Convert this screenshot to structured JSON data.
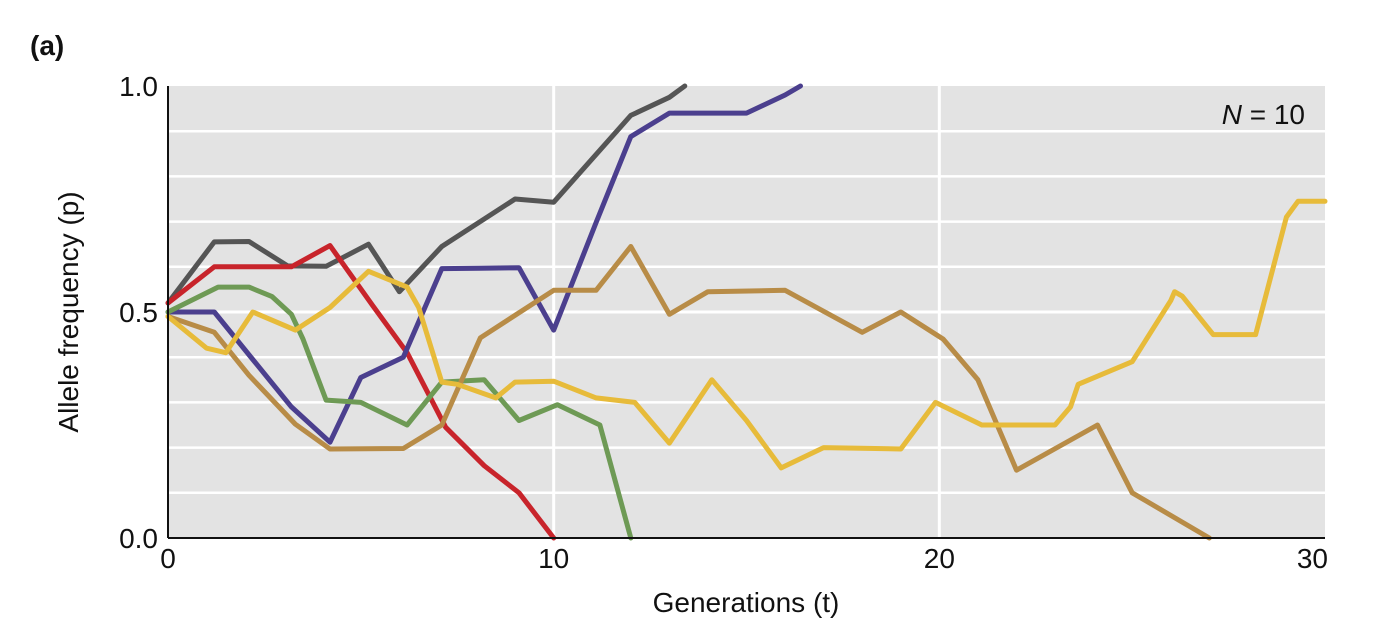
{
  "panel_label": "(a)",
  "chart_data": {
    "type": "line",
    "title": "",
    "xlabel": "Generations (t)",
    "ylabel": "Allele frequency (p)",
    "annotation": {
      "var": "N",
      "text": " = 10"
    },
    "xlim": [
      0,
      30
    ],
    "ylim": [
      0,
      1
    ],
    "xticks": [
      0,
      10,
      20,
      30
    ],
    "yticks": [
      "0.0",
      "0.5",
      "1.0"
    ],
    "grid": true,
    "background": "#e3e3e3",
    "series": [
      {
        "color": "#555555",
        "points": [
          [
            0,
            0.52
          ],
          [
            1.2,
            0.655
          ],
          [
            2.1,
            0.656
          ],
          [
            3.1,
            0.602
          ],
          [
            4.1,
            0.601
          ],
          [
            5.2,
            0.65
          ],
          [
            6,
            0.545
          ],
          [
            7.1,
            0.645
          ],
          [
            9,
            0.75
          ],
          [
            10,
            0.743
          ],
          [
            12,
            0.935
          ],
          [
            13,
            0.975
          ],
          [
            13.4,
            1.0
          ]
        ]
      },
      {
        "color": "#c8242b",
        "points": [
          [
            0,
            0.52
          ],
          [
            1.2,
            0.6
          ],
          [
            2,
            0.6
          ],
          [
            3.2,
            0.6
          ],
          [
            4.2,
            0.647
          ],
          [
            5.3,
            0.515
          ],
          [
            6.2,
            0.41
          ],
          [
            7.2,
            0.245
          ],
          [
            8.2,
            0.16
          ],
          [
            9.1,
            0.1
          ],
          [
            10,
            0.0
          ]
        ]
      },
      {
        "color": "#4b3f8e",
        "points": [
          [
            0,
            0.5
          ],
          [
            1.2,
            0.5
          ],
          [
            2.2,
            0.395
          ],
          [
            3.2,
            0.29
          ],
          [
            4.2,
            0.212
          ],
          [
            5,
            0.355
          ],
          [
            6.1,
            0.4
          ],
          [
            7.1,
            0.596
          ],
          [
            8.1,
            0.597
          ],
          [
            9.1,
            0.598
          ],
          [
            10,
            0.46
          ],
          [
            11.1,
            0.698
          ],
          [
            12,
            0.888
          ],
          [
            13,
            0.94
          ],
          [
            15,
            0.94
          ],
          [
            16,
            0.98
          ],
          [
            16.4,
            1.0
          ]
        ]
      },
      {
        "color": "#6e9a55",
        "points": [
          [
            0,
            0.5
          ],
          [
            1.3,
            0.555
          ],
          [
            2.1,
            0.555
          ],
          [
            2.7,
            0.534
          ],
          [
            3.2,
            0.495
          ],
          [
            3.5,
            0.44
          ],
          [
            4.1,
            0.305
          ],
          [
            5,
            0.3
          ],
          [
            6.2,
            0.25
          ],
          [
            7.1,
            0.345
          ],
          [
            8.2,
            0.35
          ],
          [
            9.1,
            0.26
          ],
          [
            10.1,
            0.295
          ],
          [
            11.2,
            0.25
          ],
          [
            12,
            0.0
          ]
        ]
      },
      {
        "color": "#b88c47",
        "points": [
          [
            0,
            0.49
          ],
          [
            1.2,
            0.455
          ],
          [
            2.1,
            0.36
          ],
          [
            3.3,
            0.252
          ],
          [
            4.2,
            0.197
          ],
          [
            6.1,
            0.198
          ],
          [
            7.1,
            0.25
          ],
          [
            8.1,
            0.443
          ],
          [
            10,
            0.548
          ],
          [
            11.1,
            0.548
          ],
          [
            12,
            0.645
          ],
          [
            13,
            0.495
          ],
          [
            14,
            0.545
          ],
          [
            16,
            0.548
          ],
          [
            18,
            0.455
          ],
          [
            19,
            0.5
          ],
          [
            20.1,
            0.44
          ],
          [
            21,
            0.35
          ],
          [
            22,
            0.15
          ],
          [
            24.1,
            0.25
          ],
          [
            25,
            0.1
          ],
          [
            27,
            0.0
          ]
        ]
      },
      {
        "color": "#e7bb3a",
        "points": [
          [
            0,
            0.49
          ],
          [
            1,
            0.42
          ],
          [
            1.5,
            0.41
          ],
          [
            2.2,
            0.5
          ],
          [
            3.3,
            0.46
          ],
          [
            4.2,
            0.51
          ],
          [
            5.2,
            0.59
          ],
          [
            6.2,
            0.555
          ],
          [
            6.5,
            0.51
          ],
          [
            7.1,
            0.345
          ],
          [
            7.5,
            0.34
          ],
          [
            8.5,
            0.31
          ],
          [
            9,
            0.345
          ],
          [
            10,
            0.347
          ],
          [
            11.1,
            0.31
          ],
          [
            12.1,
            0.3
          ],
          [
            13,
            0.21
          ],
          [
            14.1,
            0.35
          ],
          [
            15,
            0.26
          ],
          [
            15.9,
            0.155
          ],
          [
            17,
            0.2
          ],
          [
            19,
            0.197
          ],
          [
            19.9,
            0.3
          ],
          [
            21.1,
            0.25
          ],
          [
            23,
            0.25
          ],
          [
            23.4,
            0.29
          ],
          [
            23.6,
            0.34
          ],
          [
            25,
            0.39
          ],
          [
            26,
            0.525
          ],
          [
            26.1,
            0.545
          ],
          [
            26.3,
            0.535
          ],
          [
            27.1,
            0.45
          ],
          [
            28.2,
            0.45
          ],
          [
            29,
            0.71
          ],
          [
            29.3,
            0.745
          ],
          [
            30,
            0.745
          ]
        ]
      }
    ]
  }
}
